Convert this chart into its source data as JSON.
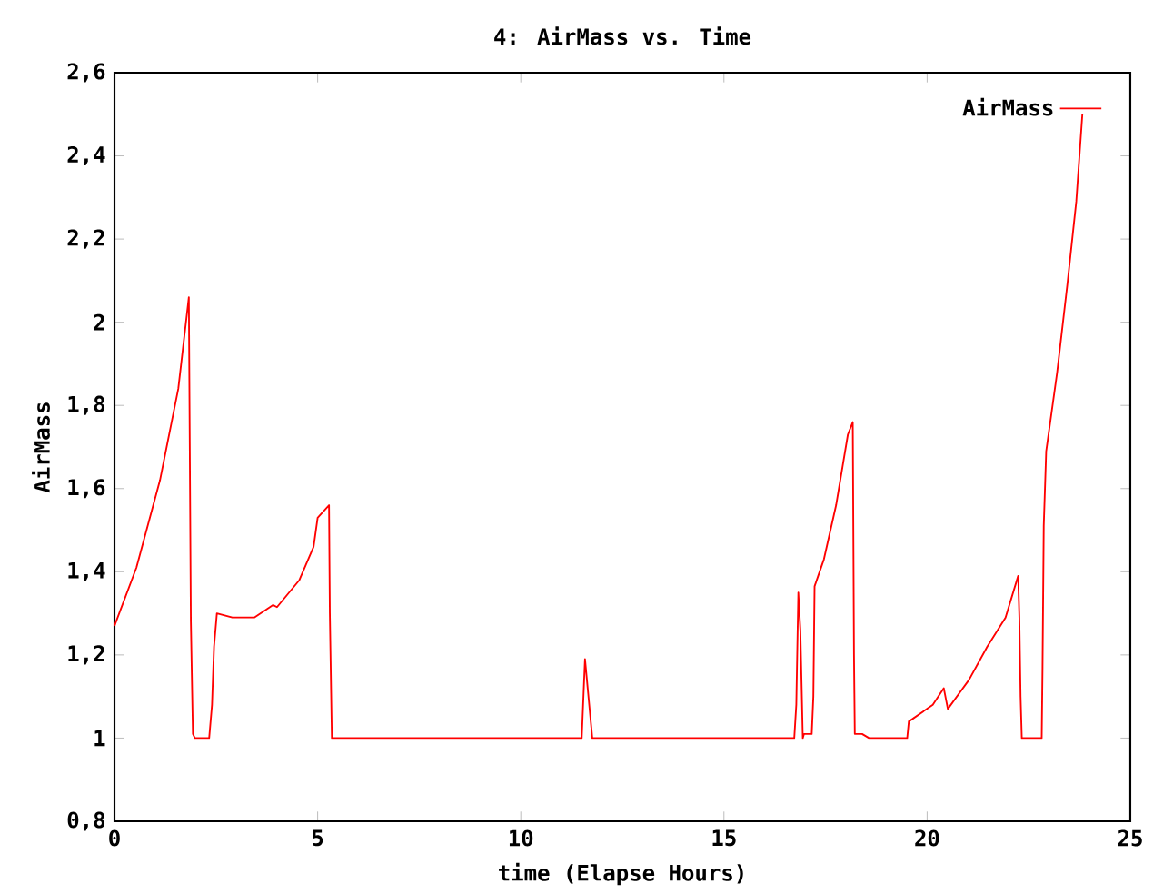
{
  "chart_data": {
    "type": "line",
    "title": "4: AirMass vs. Time",
    "xlabel": "time (Elapse Hours)",
    "ylabel": "AirMass",
    "xlim": [
      0,
      25
    ],
    "ylim": [
      0.8,
      2.6
    ],
    "xticks": [
      0,
      5,
      10,
      15,
      20,
      25
    ],
    "yticks": [
      {
        "value": 0.8,
        "label": "0,8"
      },
      1,
      {
        "value": 1.2,
        "label": "1,2"
      },
      {
        "value": 1.4,
        "label": "1,4"
      },
      {
        "value": 1.6,
        "label": "1,6"
      },
      {
        "value": 1.8,
        "label": "1,8"
      },
      2,
      {
        "value": 2.2,
        "label": "2,2"
      },
      {
        "value": 2.4,
        "label": "2,4"
      },
      {
        "value": 2.6,
        "label": "2,6"
      }
    ],
    "legend": "top right",
    "series": [
      {
        "name": "AirMass",
        "color": "#ff0000",
        "x": [
          0,
          0.54,
          1.12,
          1.57,
          1.83,
          1.88,
          1.93,
          1.98,
          2.33,
          2.4,
          2.45,
          2.52,
          2.9,
          3.44,
          3.9,
          4.0,
          4.55,
          4.9,
          5.0,
          5.28,
          5.3,
          5.35,
          11.5,
          11.58,
          11.76,
          16.73,
          16.78,
          16.83,
          16.88,
          16.94,
          16.97,
          17.16,
          17.2,
          17.23,
          17.46,
          17.76,
          18.05,
          18.17,
          18.2,
          18.22,
          18.4,
          18.57,
          19.51,
          19.55,
          20.14,
          20.41,
          20.51,
          21.03,
          21.48,
          21.93,
          22.24,
          22.27,
          22.3,
          22.33,
          22.82,
          22.84,
          22.87,
          22.93,
          23.2,
          23.45,
          23.67,
          23.82
        ],
        "values": [
          1.27,
          1.41,
          1.62,
          1.84,
          2.06,
          1.28,
          1.01,
          1.0,
          1.0,
          1.08,
          1.22,
          1.3,
          1.29,
          1.29,
          1.32,
          1.315,
          1.38,
          1.46,
          1.53,
          1.56,
          1.3,
          1.0,
          1.0,
          1.19,
          1.0,
          1.0,
          1.08,
          1.35,
          1.26,
          1.0,
          1.01,
          1.01,
          1.1,
          1.365,
          1.43,
          1.56,
          1.73,
          1.76,
          1.2,
          1.01,
          1.01,
          1.0,
          1.0,
          1.04,
          1.08,
          1.12,
          1.07,
          1.14,
          1.22,
          1.29,
          1.39,
          1.29,
          1.1,
          1.0,
          1.0,
          1.17,
          1.51,
          1.69,
          1.88,
          2.09,
          2.29,
          2.5
        ]
      }
    ]
  }
}
